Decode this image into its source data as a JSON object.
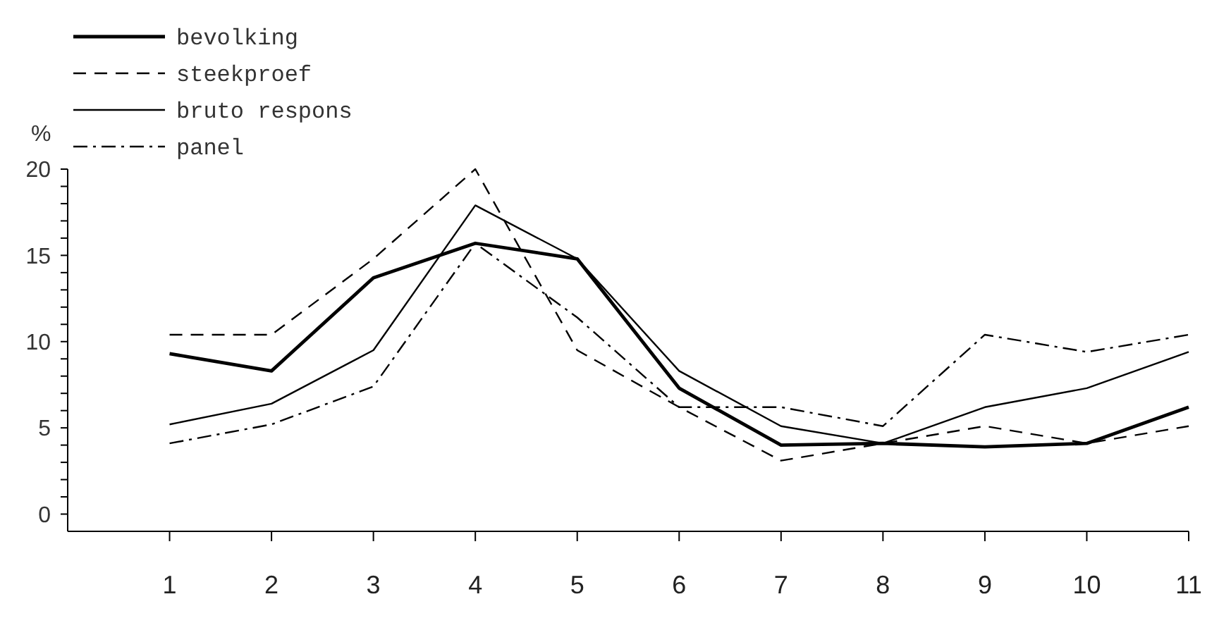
{
  "chart_data": {
    "type": "line",
    "ylabel": "%",
    "x": [
      1,
      2,
      3,
      4,
      5,
      6,
      7,
      8,
      9,
      10,
      11
    ],
    "xlim": [
      0,
      11
    ],
    "xticks": [
      1,
      2,
      3,
      4,
      5,
      6,
      7,
      8,
      9,
      10,
      11
    ],
    "ylim": [
      -1,
      20
    ],
    "yticks": [
      0,
      {
        "value": 1,
        "label": null
      },
      {
        "value": 2,
        "label": null
      },
      {
        "value": 3,
        "label": null
      },
      {
        "value": 4,
        "label": null
      },
      5,
      {
        "value": 6,
        "label": null
      },
      {
        "value": 7,
        "label": null
      },
      {
        "value": 8,
        "label": null
      },
      {
        "value": 9,
        "label": null
      },
      10,
      {
        "value": 11,
        "label": null
      },
      {
        "value": 12,
        "label": null
      },
      {
        "value": 13,
        "label": null
      },
      {
        "value": 14,
        "label": null
      },
      15,
      {
        "value": 16,
        "label": null
      },
      {
        "value": 17,
        "label": null
      },
      {
        "value": 18,
        "label": null
      },
      {
        "value": 19,
        "label": null
      },
      20
    ],
    "legend": "top left",
    "grid": false,
    "series": [
      {
        "name": "bevolking",
        "color": "#000000",
        "line_style": "solid",
        "values": [
          9.3,
          8.3,
          13.7,
          15.7,
          14.8,
          7.3,
          4.0,
          4.1,
          3.9,
          4.1,
          6.2
        ]
      },
      {
        "name": "steekproef",
        "color": "#000000",
        "line_style": "dashed",
        "values": [
          10.4,
          10.4,
          14.8,
          20,
          9.5,
          6.2,
          3.1,
          4.1,
          5.1,
          4.1,
          5.1
        ]
      },
      {
        "name": "bruto respons",
        "color": "#000000",
        "line_style": "solid",
        "values": [
          5.2,
          6.4,
          9.5,
          17.9,
          14.8,
          8.3,
          5.1,
          4.1,
          6.2,
          7.3,
          9.4
        ]
      },
      {
        "name": "panel",
        "color": "#000000",
        "line_style": "dashdot",
        "values": [
          4.1,
          5.2,
          7.4,
          15.7,
          11.4,
          6.2,
          6.2,
          5.1,
          10.4,
          9.4,
          10.4
        ]
      }
    ]
  }
}
